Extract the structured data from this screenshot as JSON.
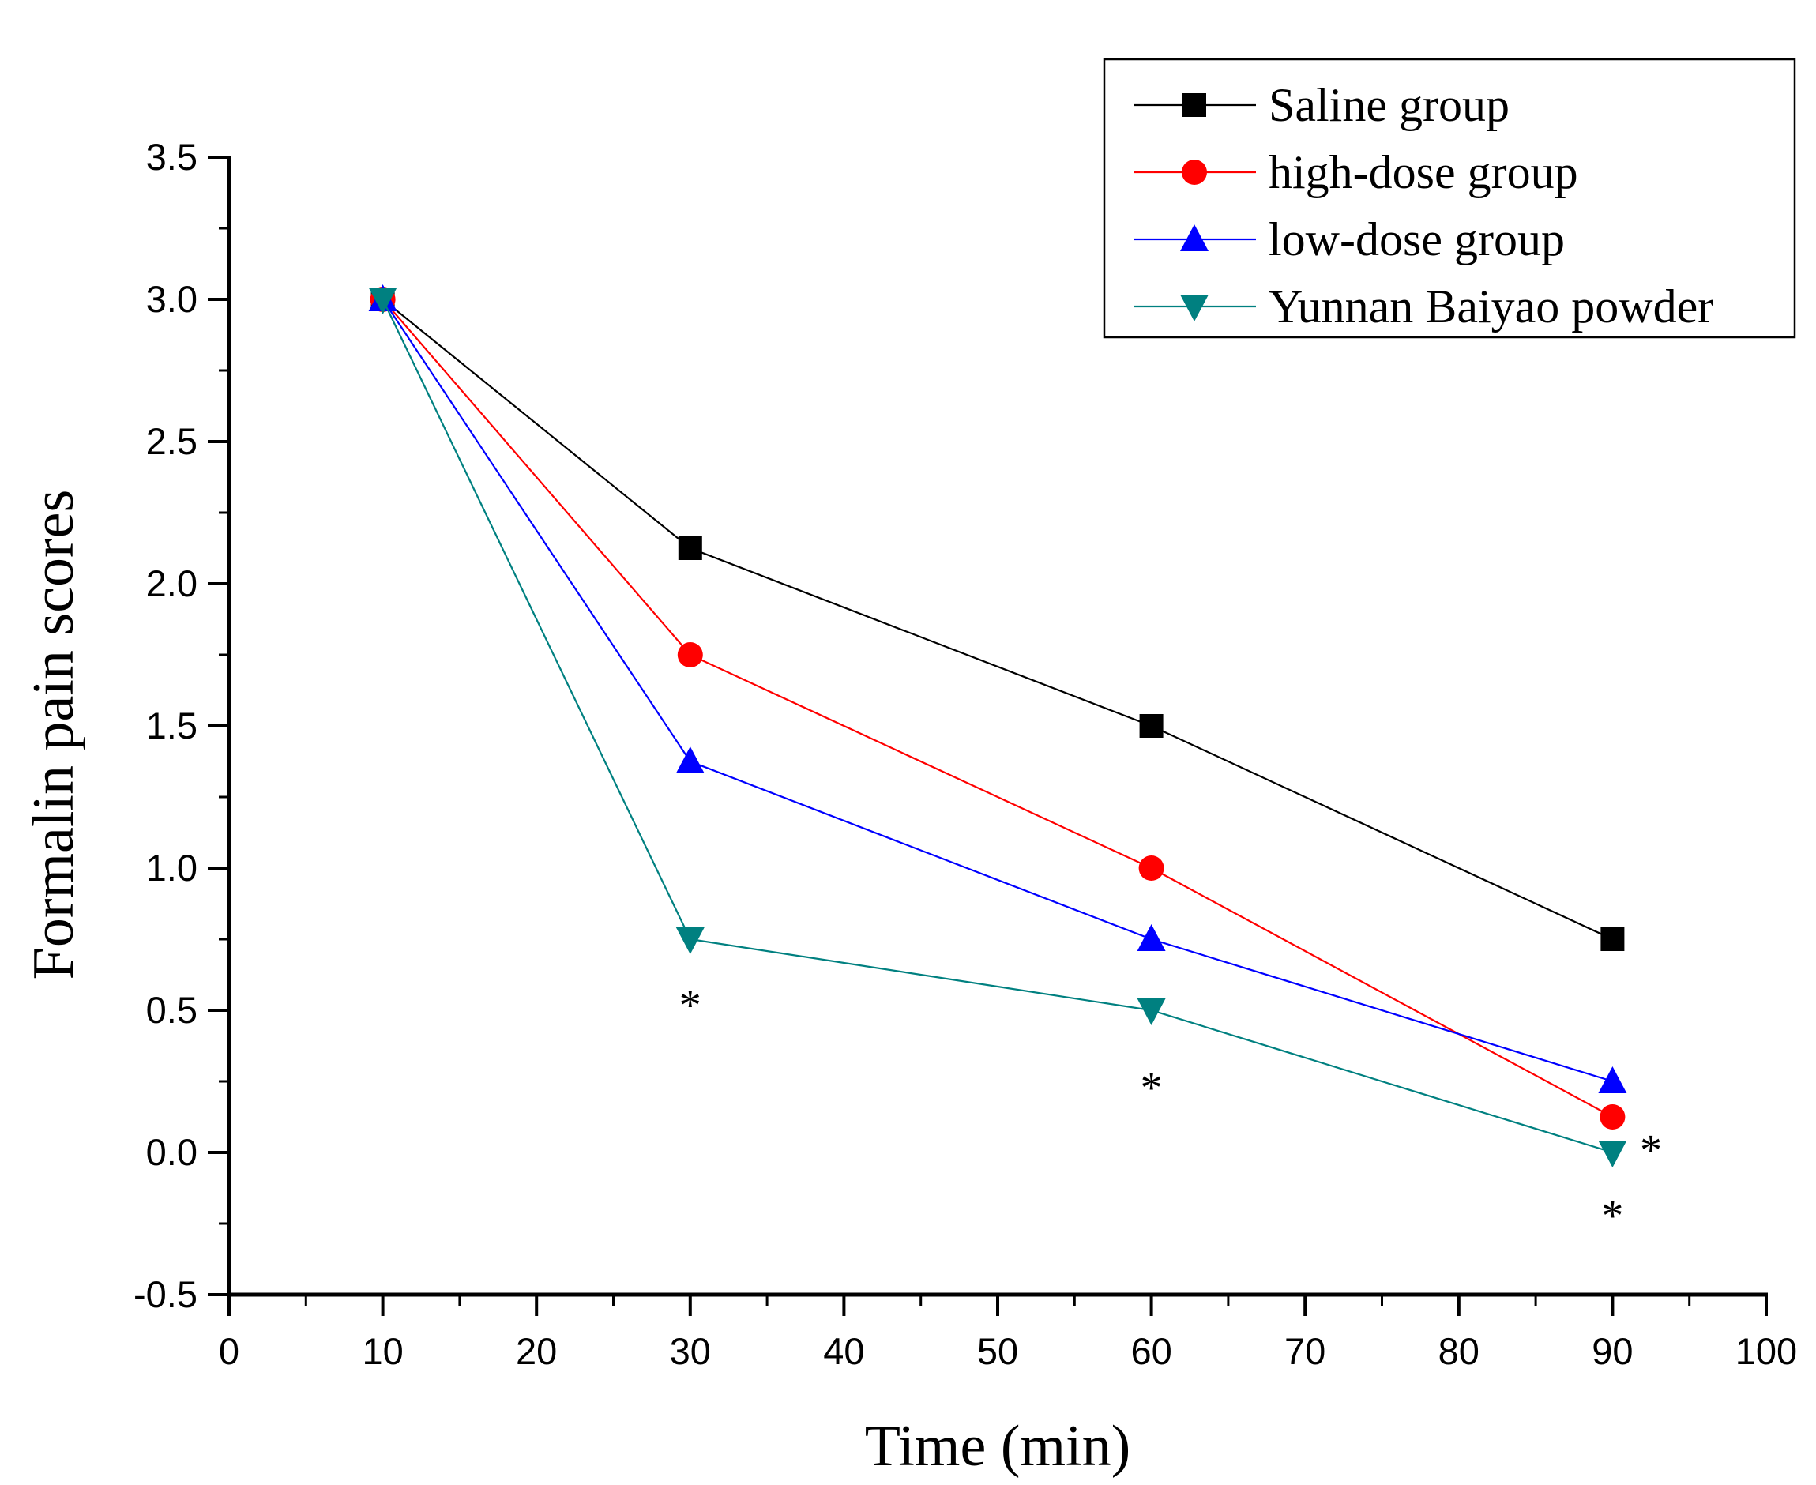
{
  "chart_data": {
    "type": "line",
    "title": "",
    "xlabel": "Time (min)",
    "ylabel": "Formalin pain scores",
    "xlim": [
      0,
      100
    ],
    "ylim": [
      -0.5,
      3.5
    ],
    "xticks": [
      "0",
      "10",
      "20",
      "30",
      "40",
      "50",
      "60",
      "70",
      "80",
      "90",
      "100"
    ],
    "yticks": [
      "-0.5",
      "0.0",
      "0.5",
      "1.0",
      "1.5",
      "2.0",
      "2.5",
      "3.0",
      "3.5"
    ],
    "grid": false,
    "legend_position": "top-right",
    "x": [
      10,
      30,
      60,
      90
    ],
    "series": [
      {
        "name": "Saline group",
        "values": [
          3.0,
          2.125,
          1.5,
          0.75
        ],
        "color": "#000000",
        "marker": "square"
      },
      {
        "name": "high-dose group",
        "values": [
          3.0,
          1.75,
          1.0,
          0.125
        ],
        "color": "#ff0000",
        "marker": "circle"
      },
      {
        "name": "low-dose group",
        "values": [
          3.0,
          1.375,
          0.75,
          0.25
        ],
        "color": "#0000ff",
        "marker": "triangle-up"
      },
      {
        "name": "Yunnan Baiyao powder",
        "values": [
          3.0,
          0.75,
          0.5,
          0.0
        ],
        "color": "#008080",
        "marker": "triangle-down"
      }
    ],
    "annotations": [
      {
        "text": "*",
        "x": 30,
        "y": 0.55
      },
      {
        "text": "*",
        "x": 60,
        "y": 0.26
      },
      {
        "text": "*",
        "x": 92.5,
        "y": 0.04
      },
      {
        "text": "*",
        "x": 90,
        "y": -0.19
      }
    ]
  }
}
